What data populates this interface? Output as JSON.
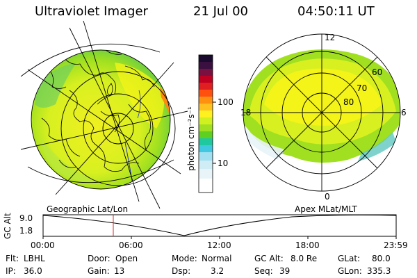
{
  "header": {
    "instrument": "Ultraviolet Imager",
    "date": "21 Jul 00",
    "time": "04:50:11 UT"
  },
  "colorbar": {
    "unit_label": "photon cm⁻²s⁻¹",
    "ticks": [
      "100",
      "10"
    ],
    "colors": [
      "#1a0a2e",
      "#3a1040",
      "#7a1040",
      "#c00020",
      "#e02020",
      "#ff5010",
      "#ff9010",
      "#ffc020",
      "#fff020",
      "#d0f020",
      "#a0e020",
      "#60d020",
      "#20c8a0",
      "#40c8e0",
      "#a0e0f0",
      "#e8f4f8"
    ]
  },
  "left_panel": {
    "caption": "Geographic Lat/Lon"
  },
  "right_panel": {
    "caption": "Apex MLat/MLT",
    "mlt_labels": {
      "top": "12",
      "bottom": "0",
      "left": "18",
      "right": "6"
    },
    "lat_labels": [
      "60",
      "70",
      "80"
    ]
  },
  "timeline": {
    "ylabel": "GC Alt",
    "y_ticks": [
      "9.0",
      "1.8"
    ],
    "x_ticks": [
      "00:00",
      "06:00",
      "12:00",
      "18:00",
      "23:59"
    ],
    "marker_time": "04:50"
  },
  "info": {
    "flt_label": "Flt:",
    "flt_value": "LBHL",
    "ip_label": "IP:",
    "ip_value": "36.0",
    "door_label": "Door:",
    "door_value": "Open",
    "gain_label": "Gain:",
    "gain_value": "13",
    "mode_label": "Mode:",
    "mode_value": "Normal",
    "dsp_label": "Dsp:",
    "dsp_value": "3.2",
    "gcalt_label": "GC Alt:",
    "gcalt_value": "8.0 Re",
    "seq_label": "Seq:",
    "seq_value": "39",
    "glat_label": "GLat:",
    "glat_value": "80.0",
    "glon_label": "GLon:",
    "glon_value": "335.3"
  }
}
